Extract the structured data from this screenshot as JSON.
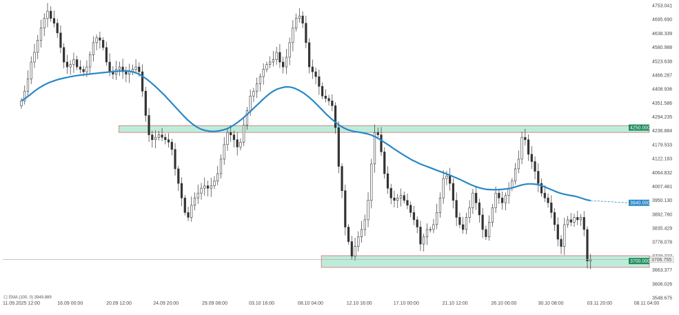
{
  "chart_data": {
    "type": "candlestick",
    "title": "",
    "xlabel": "",
    "ylabel": "",
    "ylim": [
      3548.675,
      4753.041
    ],
    "xlim": [
      "11.09.2025 12:00",
      "08.11 04:00"
    ],
    "y_ticks": [
      "4753.041",
      "4695.690",
      "4638.339",
      "4580.988",
      "4523.638",
      "4466.287",
      "4408.936",
      "4351.586",
      "4294.235",
      "4236.884",
      "4179.533",
      "4122.183",
      "4064.832",
      "4007.481",
      "3950.130",
      "3892.780",
      "3835.429",
      "3778.078",
      "3720.727",
      "3663.377",
      "3606.026",
      "3548.675"
    ],
    "x_ticks": [
      {
        "label": "11.09.2025 12:00",
        "x": "2025-09-11T12:00"
      },
      {
        "label": "16.09 00:00",
        "x": "2025-09-16T00:00"
      },
      {
        "label": "20.09 12:00",
        "x": "2025-09-20T12:00"
      },
      {
        "label": "24.09 20:00",
        "x": "2025-09-24T20:00"
      },
      {
        "label": "29.09 08:00",
        "x": "2025-09-29T08:00"
      },
      {
        "label": "03.10 16:00",
        "x": "2025-10-03T16:00"
      },
      {
        "label": "08.10 04:00",
        "x": "2025-10-08T04:00"
      },
      {
        "label": "12.10 16:00",
        "x": "2025-10-12T16:00"
      },
      {
        "label": "17.10 00:00",
        "x": "2025-10-17T00:00"
      },
      {
        "label": "21.10 12:00",
        "x": "2025-10-21T12:00"
      },
      {
        "label": "26.10 00:00",
        "x": "2025-10-26T00:00"
      },
      {
        "label": "30.10 08:00",
        "x": "2025-10-30T08:00"
      },
      {
        "label": "03.11 20:00",
        "x": "2025-11-03T20:00"
      },
      {
        "label": "08.11 04:00",
        "x": "2025-11-08T04:00"
      }
    ],
    "series": [
      {
        "type": "candlestick",
        "x_start": "2025-09-11T12:00",
        "x_end": "2025-11-03T00:00",
        "close": [
          4360,
          4400,
          4450,
          4520,
          4560,
          4610,
          4660,
          4700,
          4730,
          4700,
          4680,
          4640,
          4580,
          4520,
          4500,
          4510,
          4530,
          4500,
          4490,
          4480,
          4500,
          4550,
          4600,
          4620,
          4610,
          4580,
          4520,
          4480,
          4470,
          4490,
          4500,
          4480,
          4470,
          4480,
          4490,
          4500,
          4480,
          4400,
          4300,
          4220,
          4200,
          4210,
          4220,
          4210,
          4200,
          4190,
          4160,
          4080,
          4020,
          3960,
          3900,
          3880,
          3930,
          3960,
          3980,
          4000,
          4010,
          4000,
          4010,
          4030,
          4060,
          4120,
          4180,
          4230,
          4220,
          4200,
          4170,
          4190,
          4260,
          4320,
          4380,
          4400,
          4430,
          4460,
          4490,
          4510,
          4520,
          4530,
          4560,
          4520,
          4500,
          4540,
          4600,
          4660,
          4700,
          4710,
          4680,
          4600,
          4500,
          4480,
          4460,
          4420,
          4380,
          4370,
          4360,
          4340,
          4250,
          4090,
          3990,
          3840,
          3780,
          3720,
          3760,
          3800,
          3830,
          3870,
          3950,
          4100,
          4230,
          4220,
          4150,
          4060,
          4000,
          3960,
          3950,
          3960,
          3970,
          3950,
          3930,
          3900,
          3870,
          3840,
          3770,
          3800,
          3830,
          3830,
          3850,
          3900,
          3960,
          4040,
          4050,
          4020,
          3950,
          3880,
          3850,
          3830,
          3880,
          3920,
          3980,
          3940,
          3890,
          3830,
          3800,
          3860,
          3920,
          3980,
          3960,
          3940,
          3970,
          4000,
          4030,
          4080,
          4120,
          4210,
          4200,
          4140,
          4110,
          4070,
          4020,
          3980,
          3960,
          3940,
          3900,
          3850,
          3790,
          3760,
          3850,
          3870,
          3860,
          3880,
          3870,
          3880,
          3830,
          3700,
          3705
        ],
        "open": [
          4340,
          4360,
          4400,
          4450,
          4520,
          4560,
          4610,
          4660,
          4700,
          4730,
          4700,
          4680,
          4640,
          4580,
          4520,
          4500,
          4510,
          4530,
          4500,
          4490,
          4480,
          4500,
          4550,
          4600,
          4620,
          4610,
          4580,
          4520,
          4480,
          4470,
          4490,
          4500,
          4480,
          4470,
          4480,
          4490,
          4500,
          4480,
          4400,
          4300,
          4220,
          4200,
          4210,
          4220,
          4210,
          4200,
          4190,
          4160,
          4080,
          4020,
          3960,
          3900,
          3880,
          3930,
          3960,
          3980,
          4000,
          4010,
          4000,
          4010,
          4030,
          4060,
          4120,
          4180,
          4230,
          4220,
          4200,
          4170,
          4190,
          4260,
          4320,
          4380,
          4400,
          4430,
          4460,
          4490,
          4510,
          4520,
          4530,
          4560,
          4520,
          4500,
          4540,
          4600,
          4660,
          4700,
          4710,
          4680,
          4600,
          4500,
          4480,
          4460,
          4420,
          4380,
          4370,
          4360,
          4340,
          4250,
          4090,
          3990,
          3840,
          3780,
          3720,
          3760,
          3800,
          3830,
          3870,
          3950,
          4100,
          4230,
          4220,
          4150,
          4060,
          4000,
          3960,
          3950,
          3960,
          3970,
          3950,
          3930,
          3900,
          3870,
          3840,
          3770,
          3800,
          3830,
          3830,
          3850,
          3900,
          3960,
          4040,
          4050,
          4020,
          3950,
          3880,
          3850,
          3830,
          3880,
          3920,
          3980,
          3940,
          3890,
          3830,
          3800,
          3860,
          3920,
          3980,
          3960,
          3940,
          3970,
          4000,
          4030,
          4080,
          4120,
          4210,
          4200,
          4140,
          4110,
          4070,
          4020,
          3980,
          3960,
          3940,
          3900,
          3850,
          3790,
          3760,
          3850,
          3870,
          3860,
          3880,
          3870,
          3880,
          3830,
          3700
        ]
      },
      {
        "type": "line",
        "name": "EMA (100, 0) 3949.889",
        "color": "#2787c8",
        "values": [
          4360,
          4372,
          4386,
          4401,
          4414,
          4425,
          4434,
          4441,
          4447,
          4452,
          4456,
          4460,
          4463,
          4466,
          4468,
          4470,
          4472,
          4474,
          4476,
          4478,
          4480,
          4482,
          4483,
          4484,
          4483,
          4479,
          4472,
          4462,
          4449,
          4434,
          4418,
          4400,
          4382,
          4362,
          4342,
          4322,
          4302,
          4283,
          4267,
          4254,
          4244,
          4238,
          4235,
          4234,
          4236,
          4240,
          4246,
          4256,
          4268,
          4282,
          4298,
          4315,
          4333,
          4350,
          4368,
          4384,
          4398,
          4408,
          4414,
          4418,
          4417,
          4412,
          4403,
          4392,
          4378,
          4362,
          4344,
          4325,
          4306,
          4289,
          4273,
          4259,
          4248,
          4240,
          4235,
          4232,
          4229,
          4225,
          4220,
          4212,
          4201,
          4189,
          4177,
          4164,
          4152,
          4140,
          4129,
          4118,
          4109,
          4100,
          4093,
          4086,
          4079,
          4072,
          4065,
          4058,
          4051,
          4043,
          4035,
          4026,
          4017,
          4009,
          4003,
          3998,
          3995,
          3994,
          3994,
          3995,
          3997,
          3999,
          4004,
          4010,
          4015,
          4018,
          4018,
          4016,
          4011,
          4004,
          3996,
          3988,
          3981,
          3976,
          3972,
          3969,
          3965,
          3959,
          3953,
          3949
        ]
      }
    ],
    "zones": [
      {
        "name": "resistance-zone",
        "y_low": 4230,
        "y_high": 4258,
        "x_start": "2025-09-20T12:00",
        "x_end": "2025-11-08T04:00",
        "color": "#a8e6cf",
        "border": "#d46a6a"
      },
      {
        "name": "support-zone",
        "y_low": 3674,
        "y_high": 3722,
        "x_start": "2025-10-09T04:00",
        "x_end": "2025-11-08T04:00",
        "color": "#a8e6cf",
        "border": "#d46a6a"
      }
    ],
    "price_tags": [
      {
        "label": "4250.000",
        "y": 4250.0,
        "color": "#1f8a5c"
      },
      {
        "label": "3940.000",
        "y": 3940.0,
        "color": "#2787c8"
      },
      {
        "label": "3706.755",
        "y": 3706.755,
        "color": "#333333",
        "style": "current"
      },
      {
        "label": "3700.000",
        "y": 3700.0,
        "color": "#1f8a5c"
      }
    ],
    "legend_text": "EMA (100, 0) 3949.889",
    "grid": false,
    "up_color": "#333333",
    "down_color": "#333333"
  }
}
